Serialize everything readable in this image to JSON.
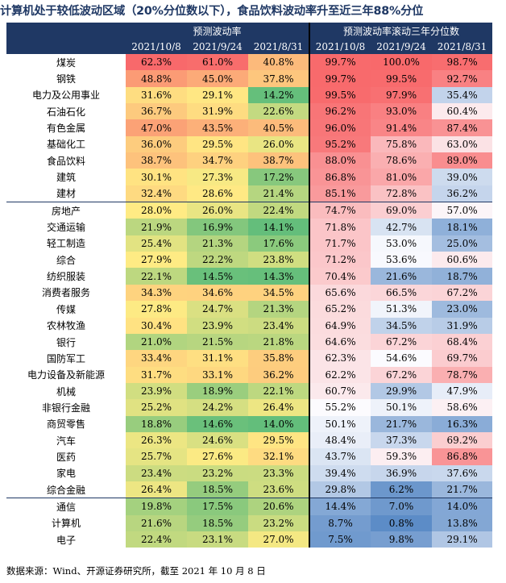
{
  "title": "计算机处于较低波动区域（20%分位数以下），食品饮料波动率升至近三年88%分位",
  "header": {
    "group1": "预测波动率",
    "group2": "预测波动率滚动三年分位数",
    "dates": [
      "2021/10/8",
      "2021/9/24",
      "2021/8/31",
      "2021/10/8",
      "2021/9/24",
      "2021/8/31"
    ]
  },
  "groups": [
    [
      {
        "name": "煤炭",
        "v": [
          "62.3%",
          "61.0%",
          "40.8%"
        ],
        "p": [
          "99.7%",
          "100.0%",
          "98.7%"
        ]
      },
      {
        "name": "钢铁",
        "v": [
          "48.8%",
          "45.0%",
          "37.8%"
        ],
        "p": [
          "99.7%",
          "99.5%",
          "92.7%"
        ]
      },
      {
        "name": "电力及公用事业",
        "v": [
          "31.6%",
          "29.1%",
          "14.2%"
        ],
        "p": [
          "99.5%",
          "97.9%",
          "35.4%"
        ]
      },
      {
        "name": "石油石化",
        "v": [
          "36.7%",
          "31.9%",
          "22.6%"
        ],
        "p": [
          "96.2%",
          "93.0%",
          "60.4%"
        ]
      },
      {
        "name": "有色金属",
        "v": [
          "47.0%",
          "43.5%",
          "40.5%"
        ],
        "p": [
          "96.0%",
          "91.4%",
          "87.4%"
        ]
      },
      {
        "name": "基础化工",
        "v": [
          "36.0%",
          "29.5%",
          "26.0%"
        ],
        "p": [
          "95.2%",
          "75.8%",
          "63.0%"
        ]
      },
      {
        "name": "食品饮料",
        "v": [
          "38.7%",
          "34.7%",
          "38.7%"
        ],
        "p": [
          "88.0%",
          "78.6%",
          "89.0%"
        ]
      },
      {
        "name": "建筑",
        "v": [
          "30.1%",
          "27.3%",
          "17.2%"
        ],
        "p": [
          "86.8%",
          "81.0%",
          "39.0%"
        ]
      },
      {
        "name": "建材",
        "v": [
          "32.4%",
          "28.6%",
          "21.4%"
        ],
        "p": [
          "85.1%",
          "72.8%",
          "36.2%"
        ]
      }
    ],
    [
      {
        "name": "房地产",
        "v": [
          "28.0%",
          "26.0%",
          "22.4%"
        ],
        "p": [
          "74.7%",
          "69.0%",
          "57.0%"
        ]
      },
      {
        "name": "交通运输",
        "v": [
          "21.9%",
          "16.9%",
          "14.1%"
        ],
        "p": [
          "71.8%",
          "42.7%",
          "18.1%"
        ]
      },
      {
        "name": "轻工制造",
        "v": [
          "25.4%",
          "21.3%",
          "17.6%"
        ],
        "p": [
          "71.7%",
          "53.0%",
          "25.0%"
        ]
      },
      {
        "name": "综合",
        "v": [
          "27.9%",
          "22.2%",
          "23.8%"
        ],
        "p": [
          "71.2%",
          "53.6%",
          "60.6%"
        ]
      },
      {
        "name": "纺织服装",
        "v": [
          "22.1%",
          "14.5%",
          "14.3%"
        ],
        "p": [
          "70.4%",
          "21.6%",
          "18.7%"
        ]
      },
      {
        "name": "消费者服务",
        "v": [
          "34.3%",
          "34.6%",
          "34.5%"
        ],
        "p": [
          "65.6%",
          "66.5%",
          "67.2%"
        ]
      },
      {
        "name": "传媒",
        "v": [
          "27.8%",
          "24.7%",
          "21.3%"
        ],
        "p": [
          "65.2%",
          "51.3%",
          "23.0%"
        ]
      },
      {
        "name": "农林牧渔",
        "v": [
          "30.4%",
          "23.9%",
          "23.4%"
        ],
        "p": [
          "64.9%",
          "34.5%",
          "31.9%"
        ]
      },
      {
        "name": "银行",
        "v": [
          "21.0%",
          "21.5%",
          "21.8%"
        ],
        "p": [
          "64.6%",
          "67.2%",
          "68.4%"
        ]
      },
      {
        "name": "国防军工",
        "v": [
          "33.4%",
          "31.1%",
          "35.8%"
        ],
        "p": [
          "62.3%",
          "54.6%",
          "69.7%"
        ]
      },
      {
        "name": "电力设备及新能源",
        "v": [
          "31.7%",
          "33.1%",
          "36.2%"
        ],
        "p": [
          "62.2%",
          "67.2%",
          "78.7%"
        ]
      },
      {
        "name": "机械",
        "v": [
          "23.9%",
          "18.9%",
          "22.1%"
        ],
        "p": [
          "60.7%",
          "29.9%",
          "47.9%"
        ]
      },
      {
        "name": "非银行金融",
        "v": [
          "25.2%",
          "24.2%",
          "26.4%"
        ],
        "p": [
          "55.2%",
          "50.1%",
          "58.6%"
        ]
      },
      {
        "name": "商贸零售",
        "v": [
          "18.8%",
          "14.6%",
          "14.0%"
        ],
        "p": [
          "50.1%",
          "21.7%",
          "16.3%"
        ]
      },
      {
        "name": "汽车",
        "v": [
          "26.3%",
          "24.6%",
          "29.5%"
        ],
        "p": [
          "48.4%",
          "37.3%",
          "69.2%"
        ]
      },
      {
        "name": "医药",
        "v": [
          "25.7%",
          "27.6%",
          "32.1%"
        ],
        "p": [
          "43.7%",
          "59.3%",
          "86.8%"
        ]
      },
      {
        "name": "家电",
        "v": [
          "23.4%",
          "23.2%",
          "23.3%"
        ],
        "p": [
          "39.4%",
          "36.9%",
          "37.6%"
        ]
      },
      {
        "name": "综合金融",
        "v": [
          "26.4%",
          "18.5%",
          "23.6%"
        ],
        "p": [
          "29.8%",
          "6.2%",
          "21.7%"
        ]
      }
    ],
    [
      {
        "name": "通信",
        "v": [
          "19.8%",
          "17.5%",
          "20.6%"
        ],
        "p": [
          "14.4%",
          "7.0%",
          "14.0%"
        ]
      },
      {
        "name": "计算机",
        "v": [
          "21.6%",
          "18.5%",
          "23.2%"
        ],
        "p": [
          "8.7%",
          "0.8%",
          "13.8%"
        ]
      },
      {
        "name": "电子",
        "v": [
          "22.4%",
          "23.1%",
          "27.0%"
        ],
        "p": [
          "7.5%",
          "9.8%",
          "29.1%"
        ]
      }
    ]
  ],
  "source": "数据来源：Wind、开源证券研究所，截至 2021 年 10 月 8 日"
}
